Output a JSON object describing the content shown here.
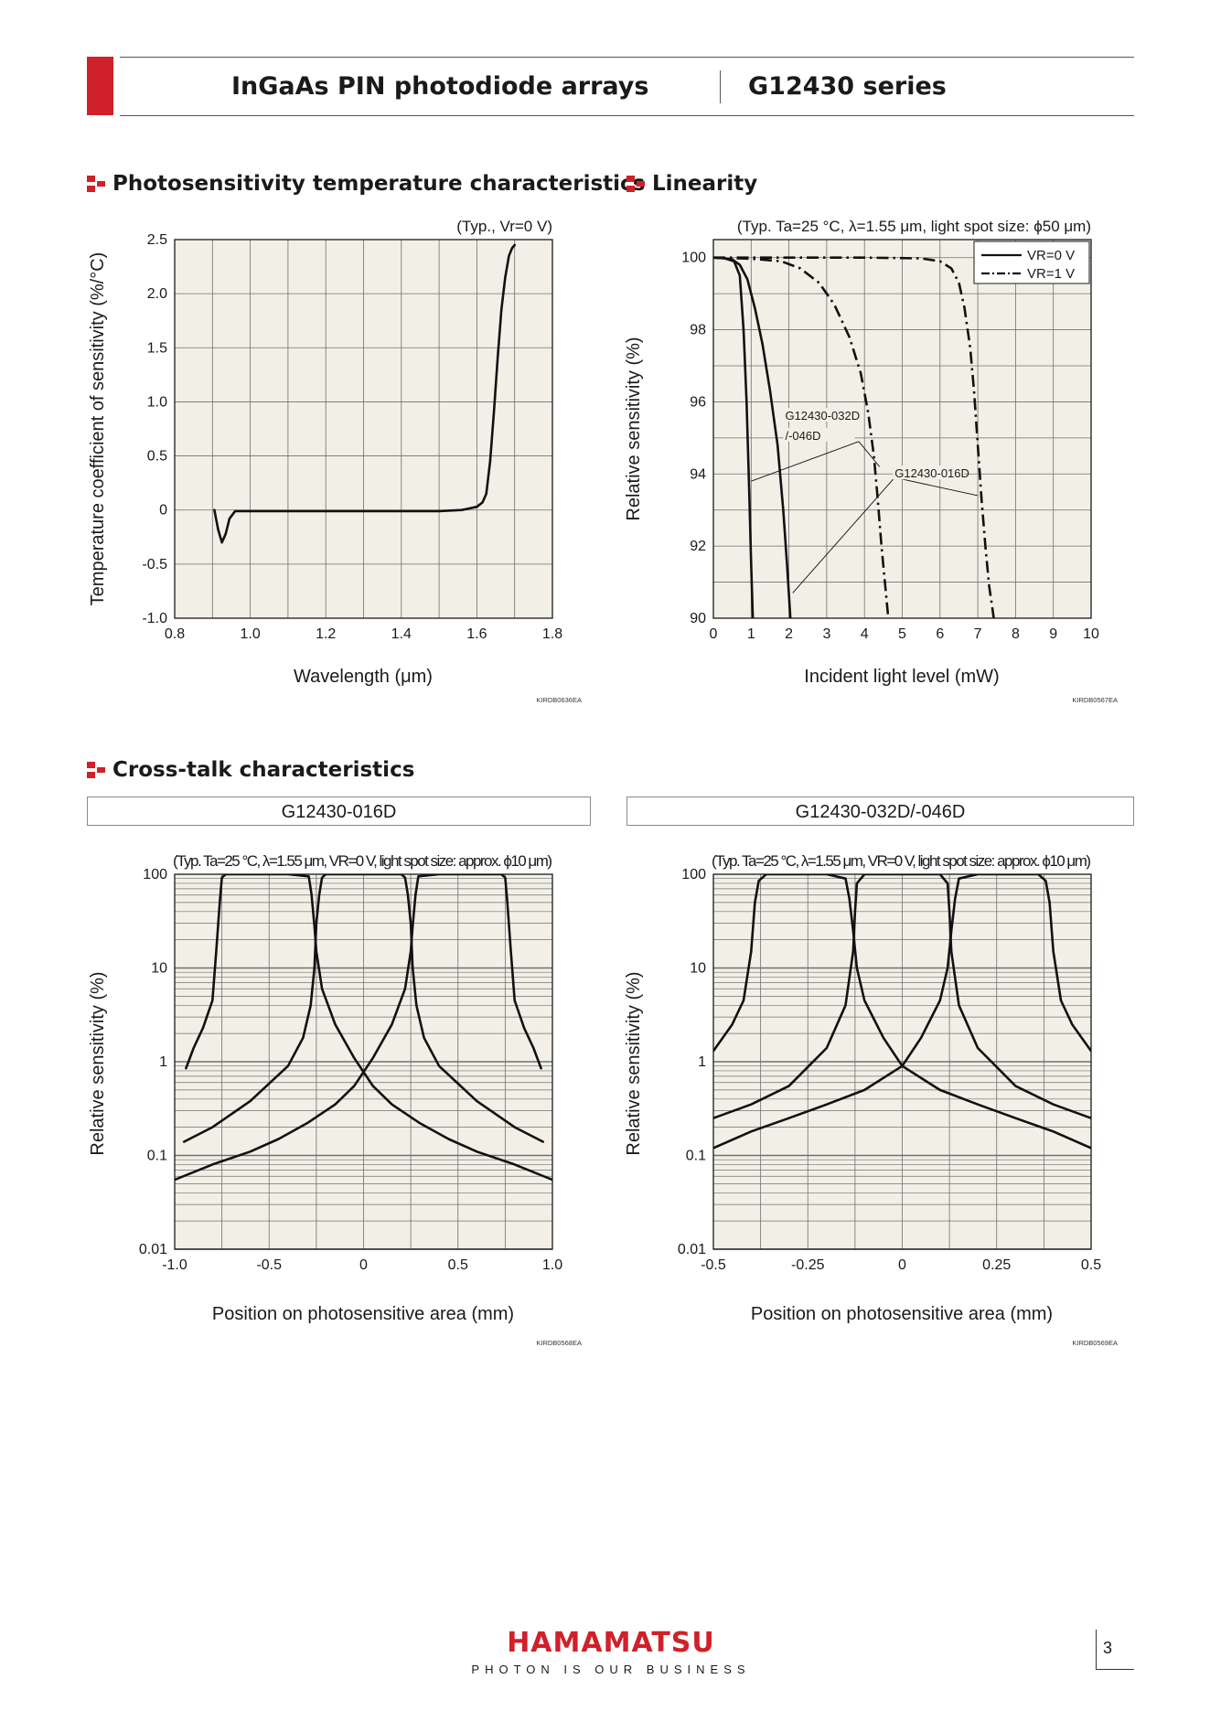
{
  "header": {
    "doc_title": "InGaAs PIN photodiode arrays",
    "series": "G12430 series",
    "accent_color": "#d0202a"
  },
  "sections": {
    "temperature": "Photosensitivity temperature characteristics",
    "linearity": "Linearity",
    "crosstalk": "Cross-talk characteristics"
  },
  "crosstalk_subheads": [
    "G12430-016D",
    "G12430-032D/-046D"
  ],
  "footer": {
    "brand": "HAMAMATSU",
    "tagline": "PHOTON IS OUR BUSINESS",
    "page_number": "3"
  },
  "chart_data": [
    {
      "id": "temp",
      "type": "line",
      "title": "Photosensitivity temperature characteristics",
      "condition": "(Typ., Vr=0 V)",
      "xlabel": "Wavelength (μm)",
      "ylabel": "Temperature coefficient of sensitivity (%/°C)",
      "xlim": [
        0.8,
        1.8
      ],
      "ylim": [
        -1.0,
        2.5
      ],
      "xticks": [
        0.8,
        1.0,
        1.2,
        1.4,
        1.6,
        1.8
      ],
      "xtick_labels": [
        "0.8",
        "1.0",
        "1.2",
        "1.4",
        "1.6",
        "1.8"
      ],
      "yticks": [
        -1.0,
        -0.5,
        0,
        0.5,
        1.0,
        1.5,
        2.0,
        2.5
      ],
      "ytick_labels": [
        "-1.0",
        "-0.5",
        "0",
        "0.5",
        "1.0",
        "1.5",
        "2.0",
        "2.5"
      ],
      "x_grid": [
        0.8,
        0.9,
        1.0,
        1.1,
        1.2,
        1.3,
        1.4,
        1.5,
        1.6,
        1.7,
        1.8
      ],
      "y_grid": [
        -1.0,
        -0.5,
        0,
        0.5,
        1.0,
        1.5,
        2.0,
        2.5
      ],
      "grid": true,
      "code": "KIRDB0636EA",
      "series": [
        {
          "style": "solid",
          "x": [
            0.905,
            0.915,
            0.925,
            0.935,
            0.945,
            0.96,
            1.0,
            1.2,
            1.4,
            1.5,
            1.56,
            1.6,
            1.615,
            1.625,
            1.635,
            1.645,
            1.655,
            1.665,
            1.675,
            1.685,
            1.693,
            1.7
          ],
          "y": [
            0.0,
            -0.18,
            -0.3,
            -0.22,
            -0.08,
            -0.01,
            -0.01,
            -0.01,
            -0.01,
            -0.01,
            0.0,
            0.03,
            0.07,
            0.15,
            0.45,
            0.9,
            1.4,
            1.85,
            2.15,
            2.35,
            2.42,
            2.45
          ]
        }
      ]
    },
    {
      "id": "lin",
      "type": "line",
      "title": "Linearity",
      "condition": "(Typ. Ta=25 °C, λ=1.55 μm, light spot size: ϕ50 μm)",
      "xlabel": "Incident light level (mW)",
      "ylabel": "Relative sensitivity (%)",
      "xlim": [
        0,
        10
      ],
      "ylim": [
        90,
        100.5
      ],
      "xticks": [
        0,
        1,
        2,
        3,
        4,
        5,
        6,
        7,
        8,
        9,
        10
      ],
      "xtick_labels": [
        "0",
        "1",
        "2",
        "3",
        "4",
        "5",
        "6",
        "7",
        "8",
        "9",
        "10"
      ],
      "yticks": [
        90,
        92,
        94,
        96,
        98,
        100
      ],
      "ytick_labels": [
        "90",
        "92",
        "94",
        "96",
        "98",
        "100"
      ],
      "x_grid": [
        0,
        1,
        2,
        3,
        4,
        5,
        6,
        7,
        8,
        9,
        10
      ],
      "y_grid": [
        90,
        91,
        92,
        93,
        94,
        95,
        96,
        97,
        98,
        99,
        100
      ],
      "grid": true,
      "legend": {
        "position": "top-right",
        "entries": [
          {
            "label": "VR=0 V",
            "style": "solid"
          },
          {
            "label": "VR=1 V",
            "style": "dashdot"
          }
        ]
      },
      "annotations": [
        {
          "text": "G12430-032D",
          "x": 1.9,
          "y": 95.5
        },
        {
          "text": "/-046D",
          "x": 1.9,
          "y": 94.95
        },
        {
          "text": "G12430-016D",
          "x": 4.8,
          "y": 93.9
        }
      ],
      "leaders": [
        {
          "from": [
            3.85,
            94.9
          ],
          "to": [
            1.0,
            93.8
          ]
        },
        {
          "from": [
            3.85,
            94.9
          ],
          "to": [
            4.4,
            94.2
          ]
        },
        {
          "from": [
            4.8,
            93.9
          ],
          "to": [
            7.0,
            93.4
          ]
        },
        {
          "from": [
            4.8,
            93.9
          ],
          "to": [
            2.1,
            90.7
          ]
        }
      ],
      "code": "KIRDB0567EA",
      "series": [
        {
          "label": "VR=0 V",
          "style": "solid",
          "x": [
            0,
            0.3,
            0.55,
            0.7,
            0.8,
            0.88,
            0.95,
            1.0,
            1.05
          ],
          "y": [
            100,
            99.98,
            99.9,
            99.5,
            98.0,
            96.0,
            93.5,
            91.5,
            89.8
          ]
        },
        {
          "label": "VR=0 V",
          "style": "solid",
          "x": [
            0,
            0.3,
            0.5,
            0.7,
            0.9,
            1.1,
            1.3,
            1.5,
            1.7,
            1.85,
            1.95,
            2.05
          ],
          "y": [
            100,
            99.98,
            99.95,
            99.8,
            99.4,
            98.6,
            97.6,
            96.3,
            94.8,
            93.0,
            91.5,
            89.8
          ]
        },
        {
          "label": "VR=1 V",
          "style": "dashdot",
          "x": [
            0,
            1.0,
            1.8,
            2.3,
            2.8,
            3.2,
            3.6,
            3.9,
            4.1,
            4.25,
            4.35,
            4.45,
            4.55,
            4.65
          ],
          "y": [
            100,
            99.97,
            99.9,
            99.7,
            99.3,
            98.7,
            97.8,
            96.8,
            95.7,
            94.5,
            93.3,
            92.0,
            90.9,
            89.8
          ]
        },
        {
          "label": "VR=1 V",
          "style": "dashdot",
          "x": [
            0,
            4.0,
            5.5,
            6.0,
            6.3,
            6.5,
            6.65,
            6.8,
            6.9,
            7.0,
            7.1,
            7.2,
            7.3,
            7.45
          ],
          "y": [
            100,
            100,
            99.98,
            99.9,
            99.7,
            99.3,
            98.6,
            97.5,
            96.3,
            94.8,
            93.3,
            92.0,
            90.9,
            89.8
          ]
        }
      ]
    },
    {
      "id": "xt016",
      "type": "line",
      "subtitle": "G12430-016D",
      "condition": "(Typ. Ta=25 °C, λ=1.55 μm, VR=0 V, light spot size: approx. ϕ10 μm)",
      "xlabel": "Position on photosensitive area (mm)",
      "ylabel": "Relative sensitivity (%)",
      "xlim": [
        -1.0,
        1.0
      ],
      "ylim": [
        0.01,
        100
      ],
      "y_scale": "log",
      "xticks": [
        -1.0,
        -0.5,
        0,
        0.5,
        1.0
      ],
      "xtick_labels": [
        "-1.0",
        "-0.5",
        "0",
        "0.5",
        "1.0"
      ],
      "yticks": [
        0.01,
        0.1,
        1,
        10,
        100
      ],
      "ytick_labels": [
        "0.01",
        "0.1",
        "1",
        "10",
        "100"
      ],
      "x_grid": [
        -1.0,
        -0.75,
        -0.5,
        -0.25,
        0,
        0.25,
        0.5,
        0.75,
        1.0
      ],
      "grid": true,
      "code": "KIRDB0568EA",
      "series": [
        {
          "style": "solid",
          "x": [
            -0.94,
            -0.9,
            -0.85,
            -0.8,
            -0.78,
            -0.76,
            -0.75,
            -0.73,
            -0.6,
            -0.4,
            -0.29,
            -0.275,
            -0.26,
            -0.25,
            -0.22,
            -0.15,
            -0.05,
            0.05,
            0.15,
            0.3,
            0.45,
            0.6,
            0.8,
            1.0
          ],
          "y": [
            0.85,
            1.4,
            2.3,
            4.5,
            15,
            55,
            92,
            100,
            100,
            100,
            95,
            60,
            28,
            15,
            6,
            2.5,
            1.1,
            0.55,
            0.35,
            0.22,
            0.15,
            0.11,
            0.08,
            0.055
          ]
        },
        {
          "style": "solid",
          "x": [
            -0.95,
            -0.8,
            -0.6,
            -0.4,
            -0.32,
            -0.28,
            -0.26,
            -0.25,
            -0.235,
            -0.22,
            -0.2,
            0.2,
            0.22,
            0.235,
            0.25,
            0.26,
            0.28,
            0.32,
            0.4,
            0.6,
            0.8,
            0.95
          ],
          "y": [
            0.14,
            0.2,
            0.38,
            0.9,
            1.8,
            4,
            10,
            30,
            60,
            92,
            100,
            100,
            92,
            60,
            30,
            10,
            4,
            1.8,
            0.9,
            0.38,
            0.2,
            0.14
          ]
        },
        {
          "style": "solid",
          "x": [
            0.94,
            0.9,
            0.85,
            0.8,
            0.78,
            0.76,
            0.75,
            0.73,
            0.6,
            0.4,
            0.29,
            0.275,
            0.26,
            0.25,
            0.22,
            0.15,
            0.05,
            -0.05,
            -0.15,
            -0.3,
            -0.45,
            -0.6,
            -0.8,
            -1.0
          ],
          "y": [
            0.85,
            1.4,
            2.3,
            4.5,
            15,
            55,
            92,
            100,
            100,
            100,
            95,
            60,
            28,
            15,
            6,
            2.5,
            1.1,
            0.55,
            0.35,
            0.22,
            0.15,
            0.11,
            0.08,
            0.055
          ]
        }
      ]
    },
    {
      "id": "xt032",
      "type": "line",
      "subtitle": "G12430-032D/-046D",
      "condition": "(Typ. Ta=25 °C, λ=1.55 μm, VR=0 V, light spot size: approx. ϕ10 μm)",
      "xlabel": "Position on photosensitive area (mm)",
      "ylabel": "Relative sensitivity (%)",
      "xlim": [
        -0.5,
        0.5
      ],
      "ylim": [
        0.01,
        100
      ],
      "y_scale": "log",
      "xticks": [
        -0.5,
        -0.25,
        0,
        0.25,
        0.5
      ],
      "xtick_labels": [
        "-0.5",
        "-0.25",
        "0",
        "0.25",
        "0.5"
      ],
      "yticks": [
        0.01,
        0.1,
        1,
        10,
        100
      ],
      "ytick_labels": [
        "0.01",
        "0.1",
        "1",
        "10",
        "100"
      ],
      "x_grid": [
        -0.5,
        -0.375,
        -0.25,
        -0.125,
        0,
        0.125,
        0.25,
        0.375,
        0.5
      ],
      "grid": true,
      "code": "KIRDB0569EA",
      "series": [
        {
          "style": "solid",
          "x": [
            -0.5,
            -0.45,
            -0.42,
            -0.4,
            -0.39,
            -0.38,
            -0.36,
            -0.3,
            -0.2,
            -0.15,
            -0.14,
            -0.13,
            -0.12,
            -0.1,
            -0.05,
            0,
            0.1,
            0.2,
            0.3,
            0.4,
            0.5
          ],
          "y": [
            1.3,
            2.5,
            4.5,
            15,
            50,
            85,
            100,
            100,
            100,
            90,
            55,
            25,
            10,
            4.5,
            1.8,
            0.9,
            0.5,
            0.35,
            0.25,
            0.18,
            0.12
          ]
        },
        {
          "style": "solid",
          "x": [
            -0.5,
            -0.4,
            -0.3,
            -0.2,
            -0.15,
            -0.13,
            -0.125,
            -0.12,
            -0.1,
            0.1,
            0.12,
            0.125,
            0.13,
            0.15,
            0.2,
            0.3,
            0.4,
            0.5
          ],
          "y": [
            0.25,
            0.35,
            0.55,
            1.4,
            4,
            15,
            40,
            80,
            100,
            100,
            80,
            40,
            15,
            4,
            1.4,
            0.55,
            0.35,
            0.25
          ]
        },
        {
          "style": "solid",
          "x": [
            0.5,
            0.45,
            0.42,
            0.4,
            0.39,
            0.38,
            0.36,
            0.3,
            0.2,
            0.15,
            0.14,
            0.13,
            0.12,
            0.1,
            0.05,
            0,
            -0.1,
            -0.2,
            -0.3,
            -0.4,
            -0.5
          ],
          "y": [
            1.3,
            2.5,
            4.5,
            15,
            50,
            85,
            100,
            100,
            100,
            90,
            55,
            25,
            10,
            4.5,
            1.8,
            0.9,
            0.5,
            0.35,
            0.25,
            0.18,
            0.12
          ]
        }
      ]
    }
  ]
}
